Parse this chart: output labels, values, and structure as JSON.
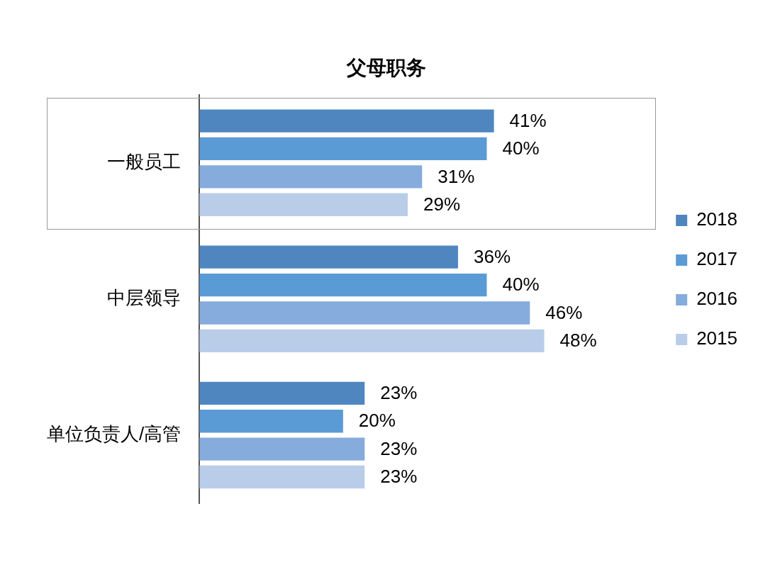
{
  "chart_data": {
    "type": "bar",
    "orientation": "horizontal",
    "title": "父母职务",
    "categories": [
      "一般员工",
      "中层领导",
      "单位负责人/高管"
    ],
    "series": [
      {
        "name": "2018",
        "color": "#4f86c0",
        "values": [
          41,
          36,
          23
        ],
        "value_labels": [
          "41%",
          "36%",
          "23%"
        ]
      },
      {
        "name": "2017",
        "color": "#5b9bd5",
        "values": [
          40,
          40,
          20
        ],
        "value_labels": [
          "40%",
          "40%",
          "20%"
        ]
      },
      {
        "name": "2016",
        "color": "#85acdc",
        "values": [
          31,
          46,
          23
        ],
        "value_labels": [
          "31%",
          "46%",
          "23%"
        ]
      },
      {
        "name": "2015",
        "color": "#b9cde9",
        "values": [
          29,
          48,
          23
        ],
        "value_labels": [
          "29%",
          "48%",
          "23%"
        ]
      }
    ],
    "legend": "right"
  }
}
